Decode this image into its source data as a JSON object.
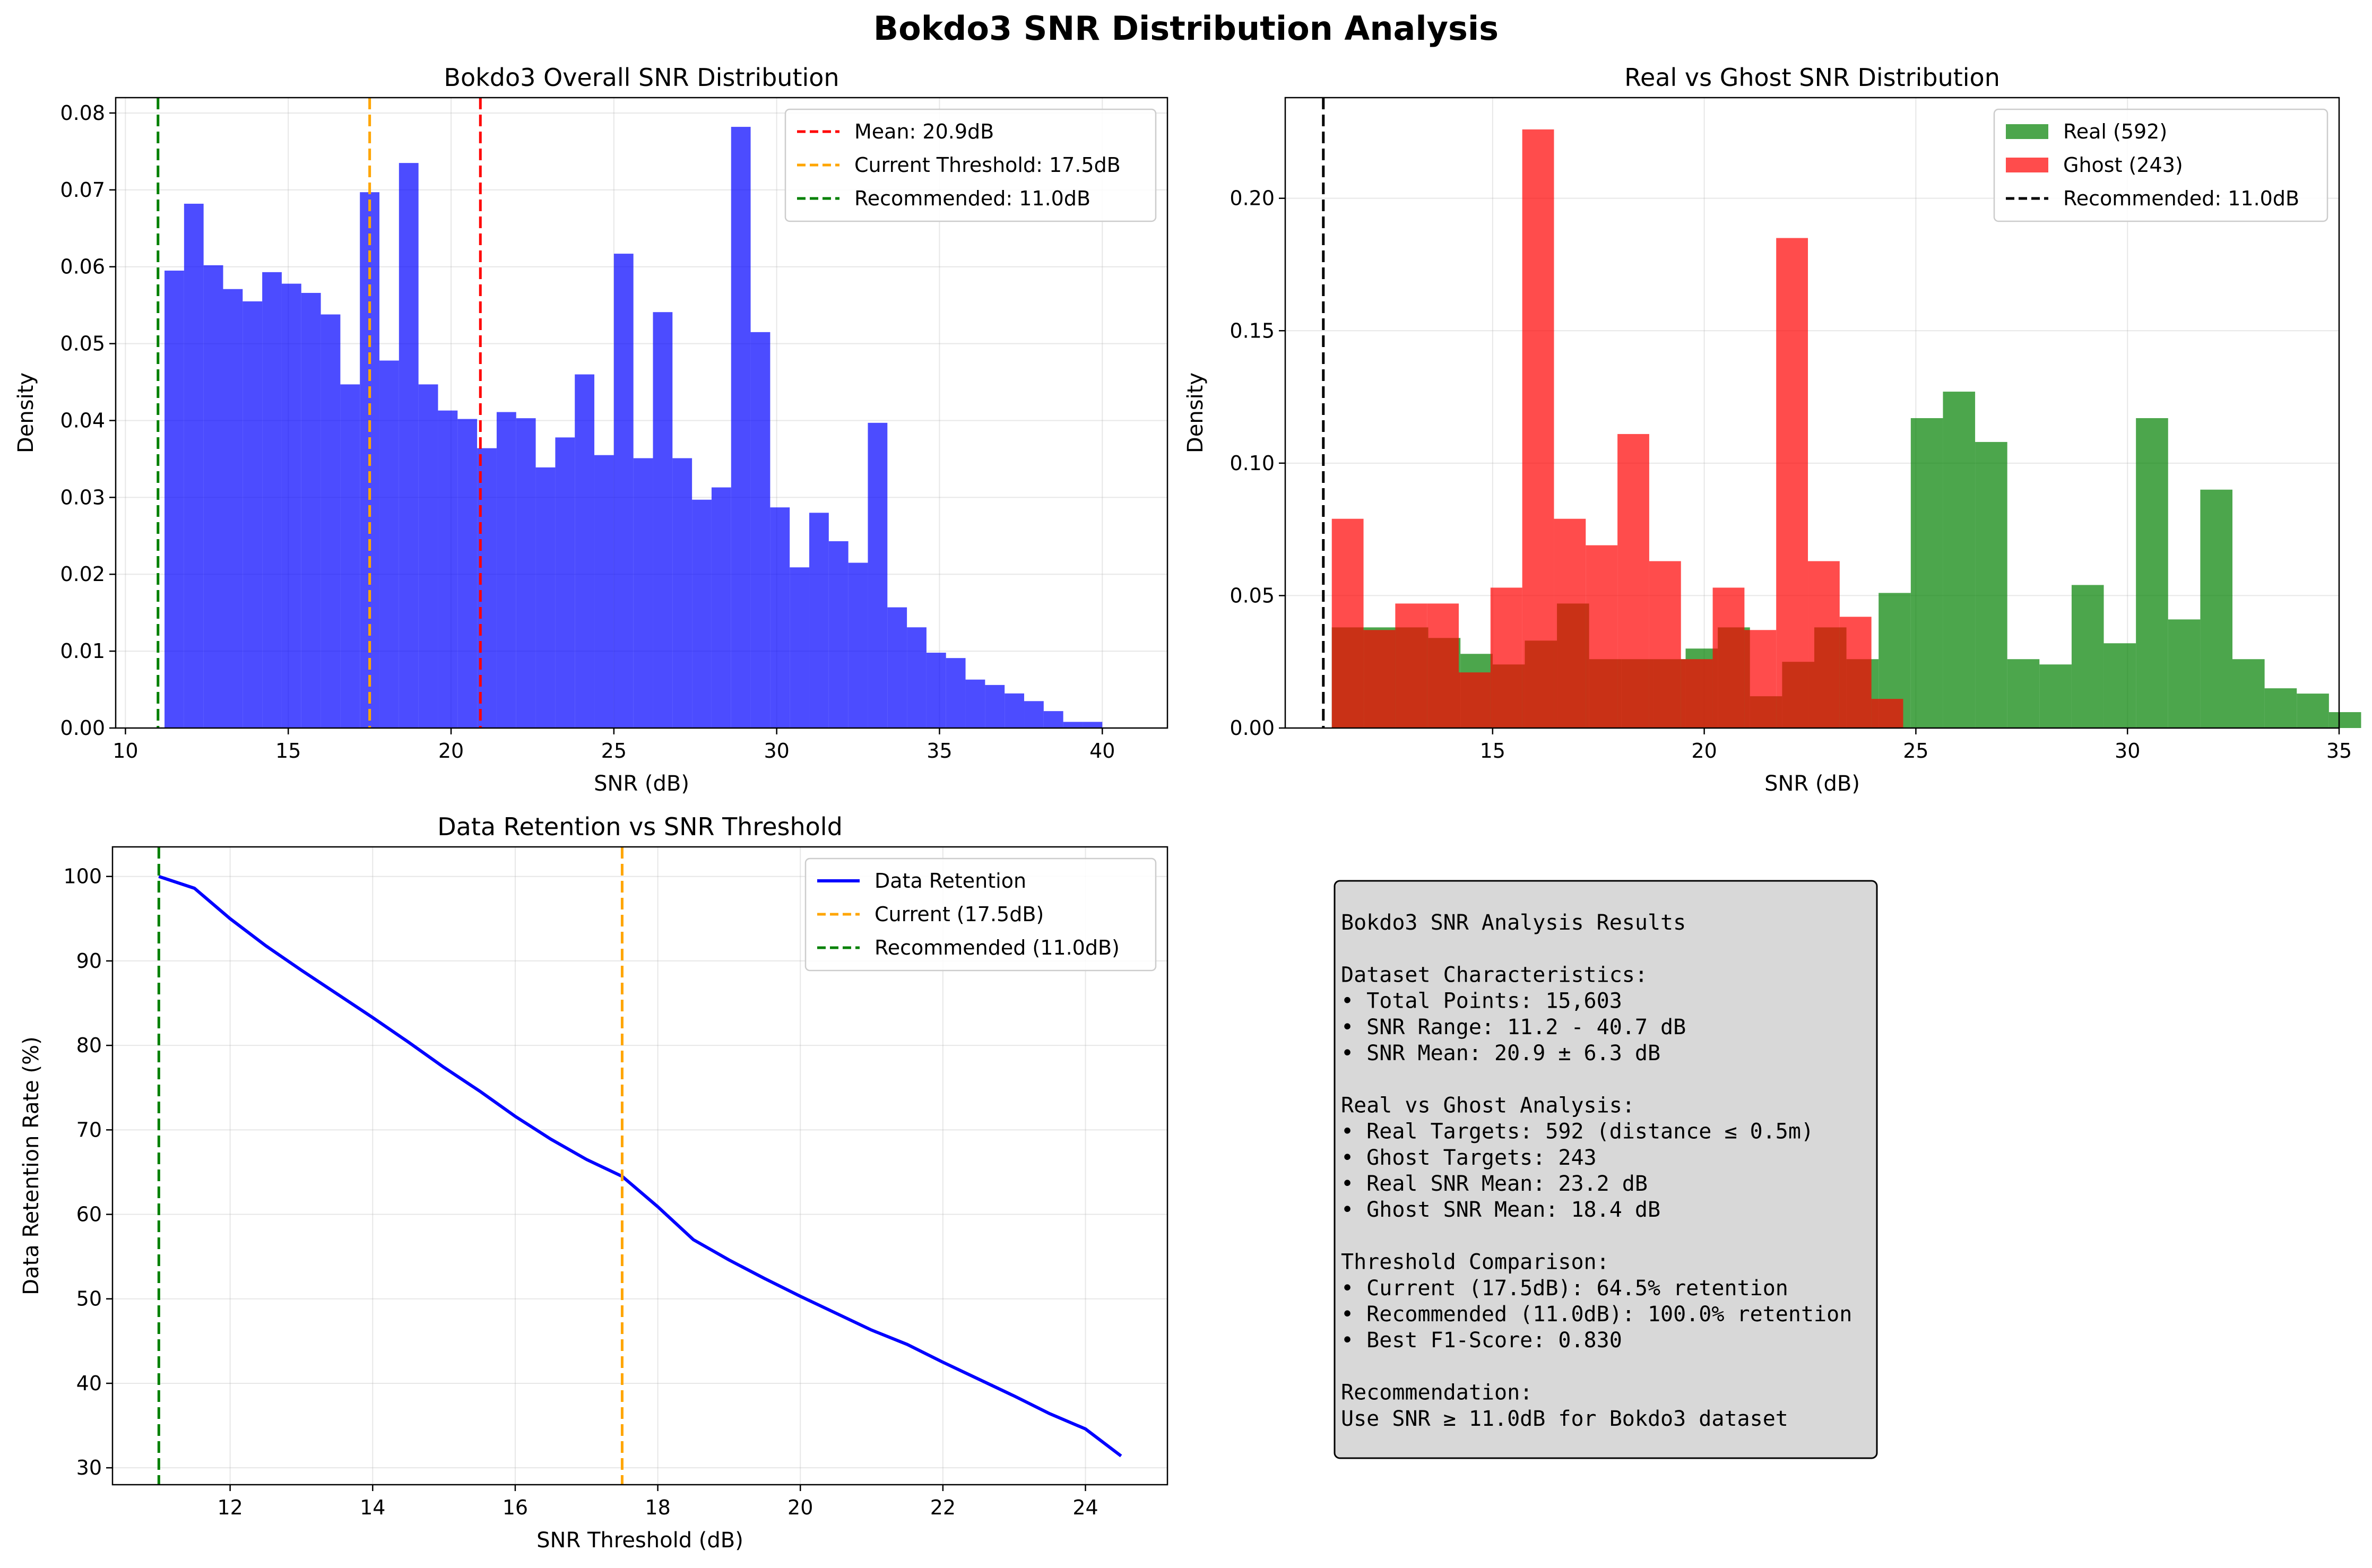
{
  "figure_title": "Bokdo3 SNR Distribution Analysis",
  "chart_data": [
    {
      "type": "bar",
      "title": "Bokdo3 Overall SNR Distribution",
      "xlabel": "SNR (dB)",
      "ylabel": "Density",
      "xlim": [
        9.7,
        42.0
      ],
      "ylim": [
        0,
        0.082
      ],
      "xticks": [
        "10",
        "15",
        "20",
        "25",
        "30",
        "35",
        "40"
      ],
      "xtick_values": [
        10,
        15,
        20,
        25,
        30,
        35,
        40
      ],
      "yticks": [
        "0.00",
        "0.01",
        "0.02",
        "0.03",
        "0.04",
        "0.05",
        "0.06",
        "0.07",
        "0.08"
      ],
      "ytick_values": [
        0,
        0.01,
        0.02,
        0.03,
        0.04,
        0.05,
        0.06,
        0.07,
        0.08
      ],
      "grid": true,
      "legend_position": "top-right",
      "bin_start": 11.2,
      "bin_width": 0.6,
      "color": "#0000ff",
      "values": [
        0.0595,
        0.0682,
        0.0602,
        0.0571,
        0.0555,
        0.0593,
        0.0578,
        0.0566,
        0.0538,
        0.0447,
        0.0697,
        0.0478,
        0.0735,
        0.0447,
        0.0413,
        0.0402,
        0.0364,
        0.0411,
        0.0403,
        0.0339,
        0.0378,
        0.046,
        0.0355,
        0.0617,
        0.0351,
        0.0541,
        0.0351,
        0.0297,
        0.0313,
        0.0782,
        0.0515,
        0.0287,
        0.0209,
        0.028,
        0.0243,
        0.0215,
        0.0397,
        0.0157,
        0.0131,
        0.0098,
        0.0091,
        0.0063,
        0.0056,
        0.0045,
        0.0035,
        0.0022,
        0.0008,
        0.0008
      ],
      "vlines": [
        {
          "x": 20.9,
          "label": "Mean: 20.9dB",
          "color": "#ff0000"
        },
        {
          "x": 17.5,
          "label": "Current Threshold: 17.5dB",
          "color": "#ffa500"
        },
        {
          "x": 11.0,
          "label": "Recommended: 11.0dB",
          "color": "#008000"
        }
      ]
    },
    {
      "type": "bar",
      "title": "Real vs Ghost SNR Distribution",
      "xlabel": "SNR (dB)",
      "ylabel": "Density",
      "xlim": [
        10.1,
        35.0
      ],
      "ylim": [
        0,
        0.238
      ],
      "xticks": [
        "15",
        "20",
        "25",
        "30",
        "35"
      ],
      "xtick_values": [
        15,
        20,
        25,
        30,
        35
      ],
      "yticks": [
        "0.00",
        "0.05",
        "0.10",
        "0.15",
        "0.20"
      ],
      "ytick_values": [
        0,
        0.05,
        0.1,
        0.15,
        0.2
      ],
      "grid": true,
      "legend_position": "top-right",
      "series": [
        {
          "name": "Real (592)",
          "color": "#008000",
          "bin_start": 11.2,
          "bin_width": 0.76,
          "values": [
            0.038,
            0.038,
            0.038,
            0.034,
            0.028,
            0.024,
            0.033,
            0.047,
            0.026,
            0.026,
            0.026,
            0.03,
            0.038,
            0.012,
            0.025,
            0.038,
            0.026,
            0.051,
            0.117,
            0.127,
            0.108,
            0.026,
            0.024,
            0.054,
            0.032,
            0.117,
            0.041,
            0.09,
            0.026,
            0.015,
            0.013,
            0.006
          ]
        },
        {
          "name": "Ghost (243)",
          "color": "#ff0000",
          "bin_start": 11.2,
          "bin_width": 0.75,
          "values": [
            0.079,
            0.037,
            0.047,
            0.047,
            0.021,
            0.053,
            0.226,
            0.079,
            0.069,
            0.111,
            0.063,
            0.026,
            0.053,
            0.037,
            0.185,
            0.063,
            0.042,
            0.011
          ]
        }
      ],
      "vlines": [
        {
          "x": 11.0,
          "label": "Recommended: 11.0dB",
          "color": "#000000"
        }
      ]
    },
    {
      "type": "line",
      "title": "Data Retention vs SNR Threshold",
      "xlabel": "SNR Threshold (dB)",
      "ylabel": "Data Retention Rate (%)",
      "xlim": [
        10.35,
        25.15
      ],
      "ylim": [
        28,
        103.5
      ],
      "xticks": [
        "12",
        "14",
        "16",
        "18",
        "20",
        "22",
        "24"
      ],
      "xtick_values": [
        12,
        14,
        16,
        18,
        20,
        22,
        24
      ],
      "yticks": [
        "30",
        "40",
        "50",
        "60",
        "70",
        "80",
        "90",
        "100"
      ],
      "ytick_values": [
        30,
        40,
        50,
        60,
        70,
        80,
        90,
        100
      ],
      "grid": true,
      "legend_position": "top-right",
      "series": [
        {
          "name": "Data Retention",
          "color": "#0000ff",
          "x": [
            11.0,
            11.5,
            12.0,
            12.5,
            13.0,
            13.5,
            14.0,
            14.5,
            15.0,
            15.5,
            16.0,
            16.5,
            17.0,
            17.5,
            18.0,
            18.5,
            19.0,
            19.5,
            20.0,
            20.5,
            21.0,
            21.5,
            22.0,
            22.5,
            23.0,
            23.5,
            24.0,
            24.5
          ],
          "values": [
            100.0,
            98.6,
            95.0,
            91.8,
            88.9,
            86.1,
            83.3,
            80.4,
            77.4,
            74.6,
            71.6,
            68.9,
            66.5,
            64.5,
            60.9,
            57.0,
            54.6,
            52.4,
            50.3,
            48.3,
            46.3,
            44.6,
            42.5,
            40.5,
            38.5,
            36.4,
            34.6,
            31.4
          ]
        }
      ],
      "vlines": [
        {
          "x": 17.5,
          "label": "Current (17.5dB)",
          "color": "#ffa500"
        },
        {
          "x": 11.0,
          "label": "Recommended (11.0dB)",
          "color": "#008000"
        }
      ]
    }
  ],
  "summary_box": {
    "lines": [
      "Bokdo3 SNR Analysis Results",
      "",
      "Dataset Characteristics:",
      "• Total Points: 15,603",
      "• SNR Range: 11.2 - 40.7 dB",
      "• SNR Mean: 20.9 ± 6.3 dB",
      "",
      "Real vs Ghost Analysis:",
      "• Real Targets: 592 (distance ≤ 0.5m)",
      "• Ghost Targets: 243",
      "• Real SNR Mean: 23.2 dB",
      "• Ghost SNR Mean: 18.4 dB",
      "",
      "Threshold Comparison:",
      "• Current (17.5dB): 64.5% retention",
      "• Recommended (11.0dB): 100.0% retention",
      "• Best F1-Score: 0.830",
      "",
      "Recommendation:",
      "Use SNR ≥ 11.0dB for Bokdo3 dataset"
    ]
  }
}
